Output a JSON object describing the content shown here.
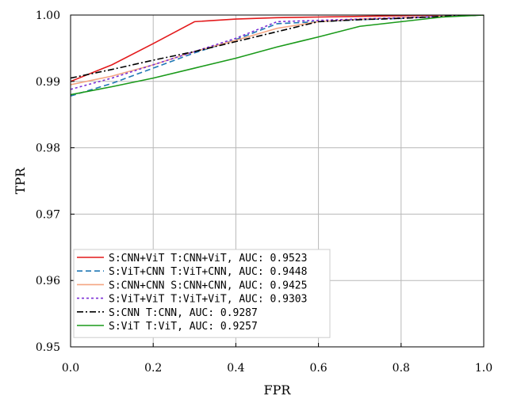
{
  "chart_data": {
    "type": "line",
    "title": "",
    "xlabel": "FPR",
    "ylabel": "TPR",
    "xlim": [
      0.0,
      1.0
    ],
    "ylim": [
      0.95,
      1.0
    ],
    "grid": true,
    "legend_placement": "lower-left",
    "x_ticks": [
      0.0,
      0.2,
      0.4,
      0.6,
      0.8,
      1.0
    ],
    "x_tick_labels": [
      "0.0",
      "0.2",
      "0.4",
      "0.6",
      "0.8",
      "1.0"
    ],
    "y_ticks": [
      0.95,
      0.96,
      0.97,
      0.98,
      0.99,
      1.0
    ],
    "y_tick_labels": [
      "0.95",
      "0.96",
      "0.97",
      "0.98",
      "0.99",
      "1.00"
    ],
    "series": [
      {
        "name": "S:CNN+ViT T:CNN+ViT, AUC: 0.9523",
        "color": "#e31a1c",
        "dash": "solid",
        "x": [
          0.0,
          0.1,
          0.2,
          0.3,
          0.4,
          0.5,
          0.6,
          0.7,
          0.8,
          0.9,
          1.0
        ],
        "y": [
          0.99,
          0.9925,
          0.9957,
          0.999,
          0.9994,
          0.9996,
          0.9997,
          0.9998,
          0.9999,
          1.0,
          1.0
        ]
      },
      {
        "name": "S:ViT+CNN T:ViT+CNN, AUC: 0.9448",
        "color": "#1f77b4",
        "dash": "dashed",
        "x": [
          0.0,
          0.1,
          0.2,
          0.3,
          0.4,
          0.5,
          0.6,
          0.7,
          0.8,
          0.9,
          1.0
        ],
        "y": [
          0.9878,
          0.9897,
          0.992,
          0.9943,
          0.9963,
          0.9987,
          0.999,
          0.9993,
          0.9995,
          0.9998,
          1.0
        ]
      },
      {
        "name": "S:CNN+CNN S:CNN+CNN, AUC: 0.9425",
        "color": "#f4a582",
        "dash": "solid",
        "x": [
          0.0,
          0.1,
          0.2,
          0.3,
          0.4,
          0.5,
          0.6,
          0.7,
          0.8,
          0.9,
          1.0
        ],
        "y": [
          0.9895,
          0.9908,
          0.9925,
          0.9945,
          0.9962,
          0.998,
          0.999,
          0.9994,
          0.9996,
          0.9998,
          1.0
        ]
      },
      {
        "name": "S:ViT+ViT T:ViT+ViT, AUC: 0.9303",
        "color": "#7b2fd6",
        "dash": "dotted",
        "x": [
          0.0,
          0.1,
          0.2,
          0.3,
          0.4,
          0.5,
          0.6,
          0.7,
          0.8,
          0.9,
          1.0
        ],
        "y": [
          0.9888,
          0.9905,
          0.9925,
          0.9945,
          0.9965,
          0.999,
          0.9992,
          0.9994,
          0.9996,
          0.9998,
          1.0
        ]
      },
      {
        "name": "S:CNN T:CNN, AUC: 0.9287",
        "color": "#000000",
        "dash": "dashdot",
        "x": [
          0.0,
          0.1,
          0.2,
          0.3,
          0.4,
          0.5,
          0.6,
          0.7,
          0.8,
          0.9,
          1.0
        ],
        "y": [
          0.9905,
          0.9918,
          0.9932,
          0.9945,
          0.996,
          0.9975,
          0.999,
          0.9993,
          0.9995,
          0.9998,
          1.0
        ]
      },
      {
        "name": "S:ViT T:ViT, AUC: 0.9257",
        "color": "#1a9a1a",
        "dash": "solid",
        "x": [
          0.0,
          0.1,
          0.2,
          0.3,
          0.4,
          0.5,
          0.6,
          0.7,
          0.8,
          0.9,
          1.0
        ],
        "y": [
          0.988,
          0.9892,
          0.9905,
          0.992,
          0.9935,
          0.9952,
          0.9967,
          0.9983,
          0.999,
          0.9997,
          1.0
        ]
      }
    ]
  }
}
